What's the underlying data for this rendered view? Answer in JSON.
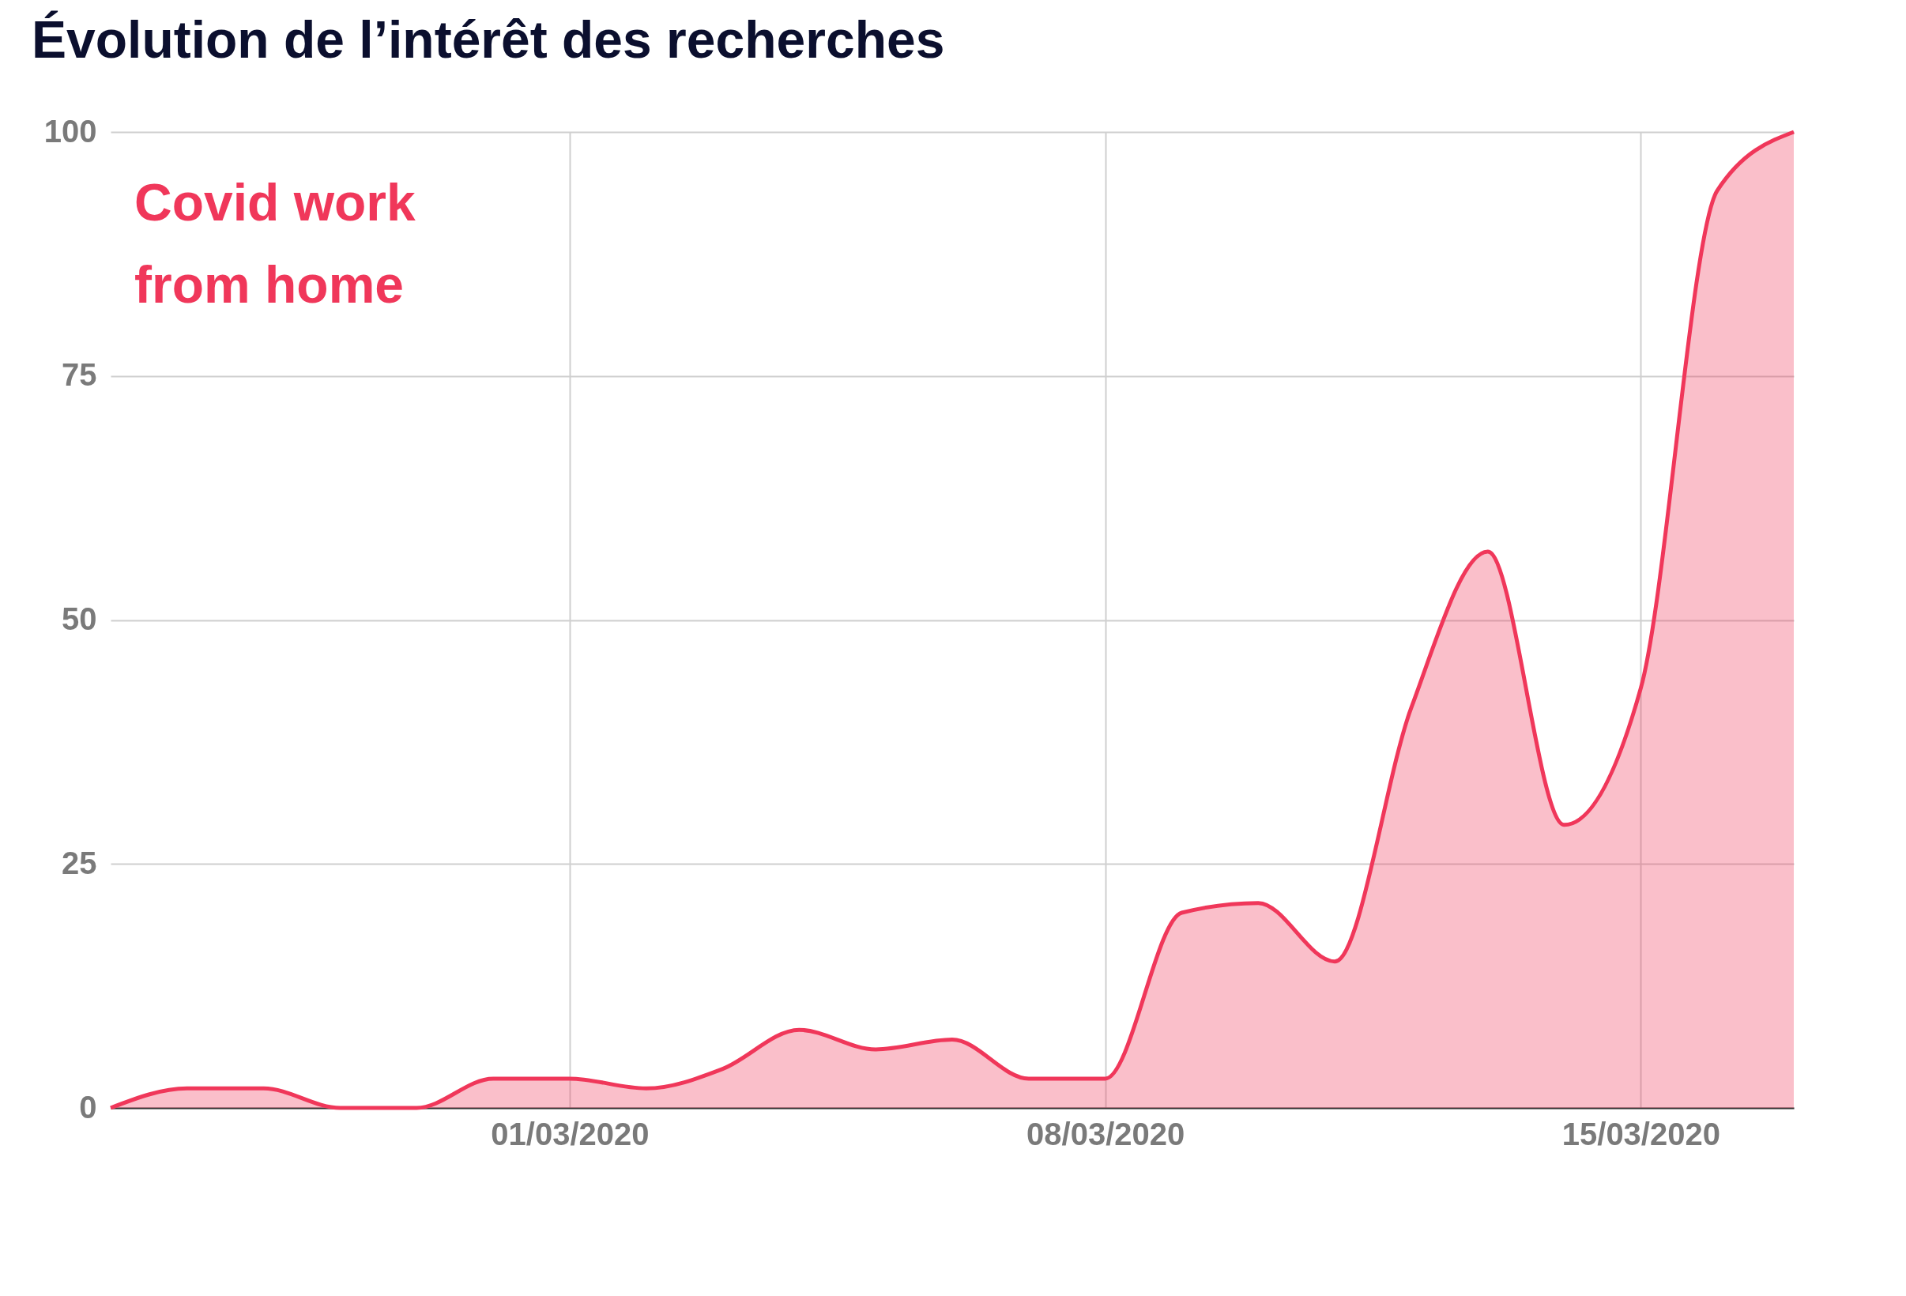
{
  "chart_data": {
    "type": "area",
    "title": "Évolution de l’intérêt des recherches",
    "x": [
      "2020-02-24",
      "2020-02-25",
      "2020-02-26",
      "2020-02-27",
      "2020-02-28",
      "2020-02-29",
      "2020-03-01",
      "2020-03-02",
      "2020-03-03",
      "2020-03-04",
      "2020-03-05",
      "2020-03-06",
      "2020-03-07",
      "2020-03-08",
      "2020-03-09",
      "2020-03-10",
      "2020-03-11",
      "2020-03-12",
      "2020-03-13",
      "2020-03-14",
      "2020-03-15",
      "2020-03-16",
      "2020-03-17"
    ],
    "series": [
      {
        "name": "Covid work from home",
        "color": "#f0375a",
        "values": [
          0,
          2,
          2,
          0,
          0,
          3,
          3,
          2,
          4,
          8,
          6,
          7,
          3,
          3,
          20,
          21,
          15,
          41,
          57,
          29,
          43,
          94,
          100
        ]
      }
    ],
    "xlim": [
      "2020-02-24",
      "2020-03-17"
    ],
    "xticks": [
      {
        "value": "2020-03-01",
        "label": "01/03/2020"
      },
      {
        "value": "2020-03-08",
        "label": "08/03/2020"
      },
      {
        "value": "2020-03-15",
        "label": "15/03/2020"
      }
    ],
    "ylim": [
      0,
      100
    ],
    "yticks": [
      0,
      25,
      50,
      75,
      100
    ],
    "grid": true,
    "legend": "top left"
  }
}
